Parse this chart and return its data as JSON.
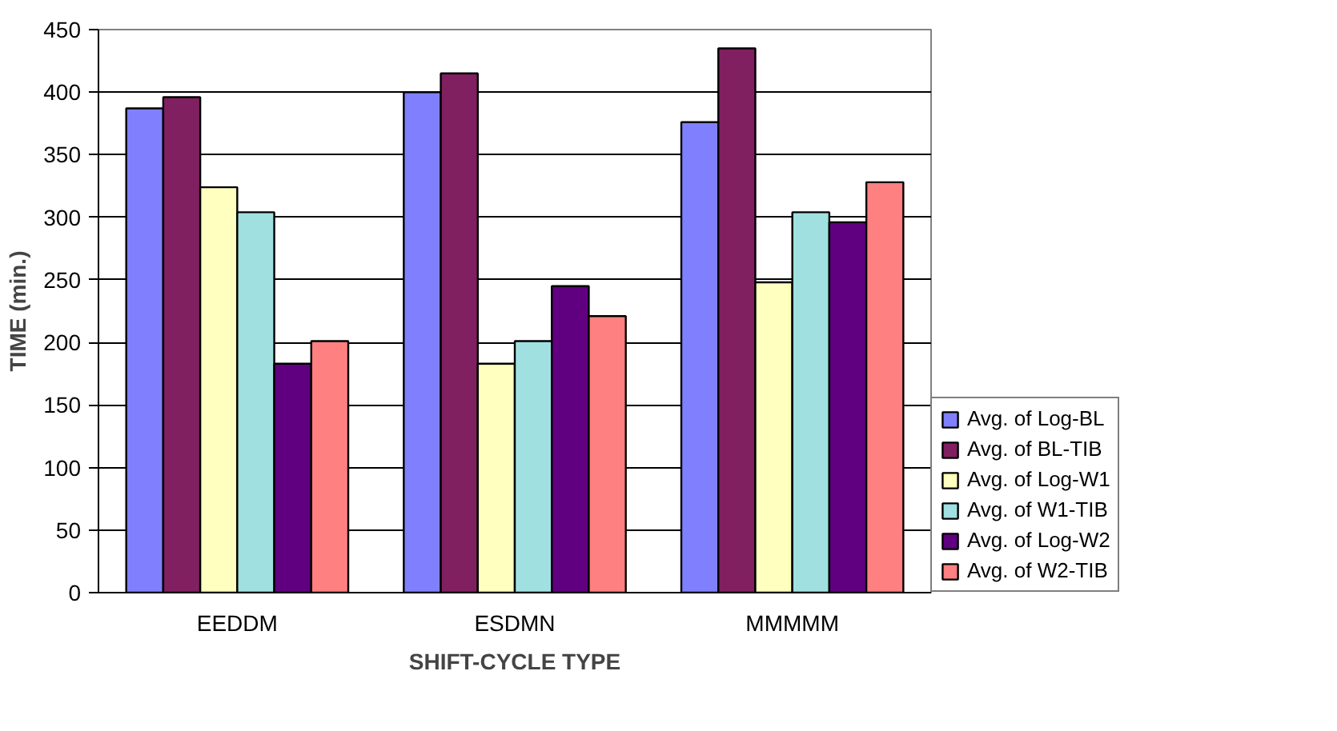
{
  "chart_data": {
    "type": "bar",
    "xlabel": "SHIFT-CYCLE TYPE",
    "ylabel": "TIME (min.)",
    "categories": [
      "EEDDM",
      "ESDMN",
      "MMMMM"
    ],
    "series": [
      {
        "name": "Avg. of Log-BL",
        "color": "#8080ff",
        "values": [
          387,
          400,
          376
        ]
      },
      {
        "name": "Avg. of BL-TIB",
        "color": "#802060",
        "values": [
          396,
          415,
          435
        ]
      },
      {
        "name": "Avg. of Log-W1",
        "color": "#ffffc0",
        "values": [
          324,
          183,
          248
        ]
      },
      {
        "name": "Avg. of W1-TIB",
        "color": "#a0e0e0",
        "values": [
          304,
          201,
          304
        ]
      },
      {
        "name": "Avg. of Log-W2",
        "color": "#600080",
        "values": [
          183,
          245,
          296
        ]
      },
      {
        "name": "Avg. of W2-TIB",
        "color": "#ff8080",
        "values": [
          201,
          221,
          328
        ]
      }
    ],
    "ylim": [
      0,
      450
    ],
    "yticks": [
      0,
      50,
      100,
      150,
      200,
      250,
      300,
      350,
      400,
      450
    ],
    "grid": "y",
    "legend": "bottom right"
  }
}
